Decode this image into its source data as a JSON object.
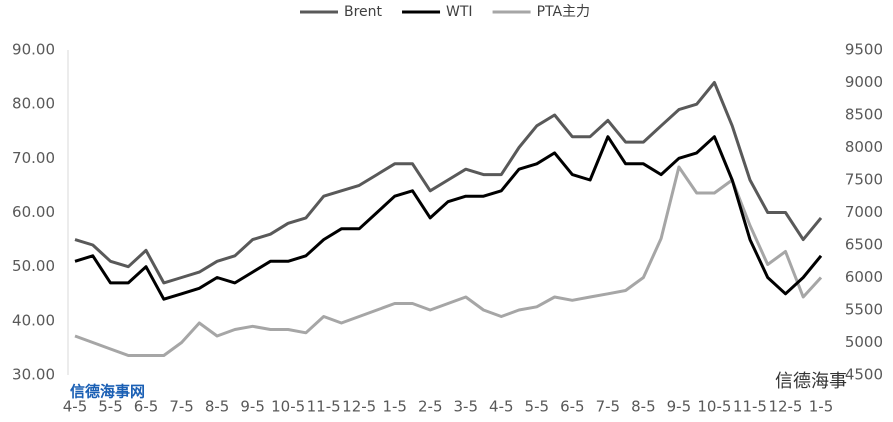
{
  "chart_data": {
    "type": "line",
    "categories": [
      "4-5",
      null,
      "5-5",
      null,
      "6-5",
      null,
      "7-5",
      null,
      "8-5",
      null,
      "9-5",
      null,
      "10-5",
      null,
      "11-5",
      null,
      "12-5",
      null,
      "1-5",
      null,
      "2-5",
      null,
      "3-5",
      null,
      "4-5",
      null,
      "5-5",
      null,
      "6-5",
      null,
      "7-5",
      null,
      "8-5",
      null,
      "9-5",
      null,
      "10-5",
      null,
      "11-5",
      null,
      "12-5",
      null,
      "1-5"
    ],
    "series": [
      {
        "name": "Brent",
        "color": "#595959",
        "values": [
          55,
          54,
          51,
          50,
          53,
          47,
          48,
          49,
          51,
          52,
          55,
          56,
          58,
          59,
          63,
          64,
          65,
          67,
          69,
          69,
          64,
          66,
          68,
          67,
          67,
          72,
          76,
          78,
          74,
          74,
          77,
          73,
          73,
          76,
          79,
          80,
          84,
          76,
          66,
          60,
          60,
          55,
          59
        ]
      },
      {
        "name": "WTI",
        "color": "#000000",
        "values": [
          51,
          52,
          47,
          47,
          50,
          44,
          45,
          46,
          48,
          47,
          49,
          51,
          51,
          52,
          55,
          57,
          57,
          60,
          63,
          64,
          59,
          62,
          63,
          63,
          64,
          68,
          69,
          71,
          67,
          66,
          74,
          69,
          69,
          67,
          70,
          71,
          74,
          66,
          55,
          48,
          45,
          48,
          52
        ]
      },
      {
        "name": "PTA主力",
        "color": "#a6a6a6",
        "axis": "y2",
        "values": [
          5100,
          5000,
          4900,
          4800,
          4800,
          4800,
          5000,
          5300,
          5100,
          5200,
          5250,
          5200,
          5200,
          5150,
          5400,
          5300,
          5400,
          5500,
          5600,
          5600,
          5500,
          5600,
          5700,
          5500,
          5400,
          5500,
          5550,
          5700,
          5650,
          5700,
          5750,
          5800,
          6000,
          6600,
          7700,
          7300,
          7300,
          7500,
          6800,
          6200,
          6400,
          5700,
          6000
        ]
      }
    ],
    "ylim": [
      30,
      90
    ],
    "yticks": [
      {
        "value": 30,
        "label": "30.00"
      },
      {
        "value": 40,
        "label": "40.00"
      },
      {
        "value": 50,
        "label": "50.00"
      },
      {
        "value": 60,
        "label": "60.00"
      },
      {
        "value": 70,
        "label": "70.00"
      },
      {
        "value": 80,
        "label": "80.00"
      },
      {
        "value": 90,
        "label": "90.00"
      }
    ],
    "y2lim": [
      4500,
      9500
    ],
    "y2ticks": [
      4500,
      5000,
      5500,
      6000,
      6500,
      7000,
      7500,
      8000,
      8500,
      9000,
      9500
    ],
    "grid": false,
    "legend": "top",
    "annotations": [
      "信德海事网",
      "信德海事"
    ]
  }
}
